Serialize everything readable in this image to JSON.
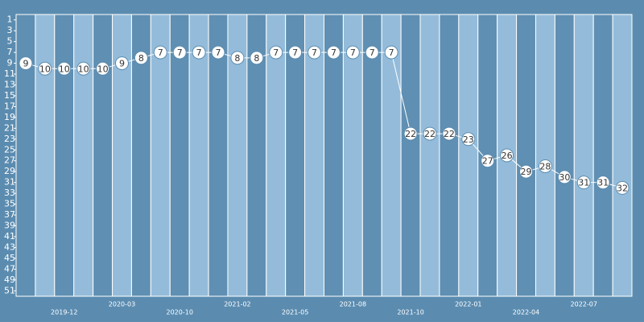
{
  "chart_data": {
    "type": "line",
    "categories": [
      null,
      null,
      "2019-12",
      null,
      null,
      "2020-03",
      null,
      null,
      "2020-10",
      null,
      null,
      "2021-02",
      null,
      null,
      "2021-05",
      null,
      null,
      "2021-08",
      null,
      null,
      "2021-10",
      null,
      null,
      "2022-01",
      null,
      null,
      "2022-04",
      null,
      null,
      "2022-07",
      null,
      null
    ],
    "values": [
      9,
      10,
      10,
      10,
      10,
      9,
      8,
      7,
      7,
      7,
      7,
      8,
      8,
      7,
      7,
      7,
      7,
      7,
      7,
      7,
      22,
      22,
      22,
      23,
      27,
      26,
      29,
      28,
      30,
      31,
      31,
      32
    ],
    "ylim": [
      0,
      52
    ],
    "y_inverted": true,
    "yticks": [
      1,
      3,
      5,
      7,
      9,
      11,
      13,
      15,
      17,
      19,
      21,
      23,
      25,
      27,
      29,
      31,
      33,
      35,
      37,
      39,
      41,
      43,
      45,
      47,
      49,
      51
    ],
    "column_colors": [
      "#5f8fb2",
      "#94bcda"
    ],
    "color": "#ffffff"
  }
}
